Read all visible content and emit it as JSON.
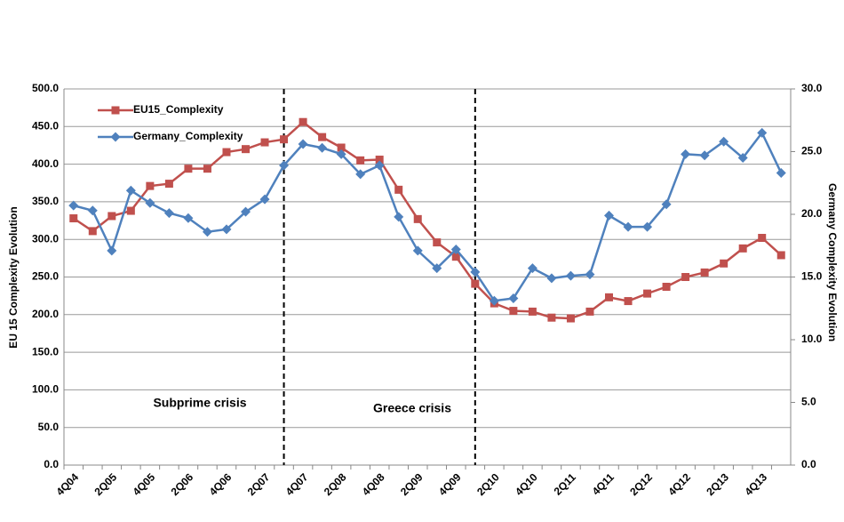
{
  "chart_data": {
    "type": "line",
    "y_label": "EU 15 Complexity Evolution",
    "y2_label": "Germany Complexity Evolution",
    "annotations": [
      "Subprime crisis",
      "Greece crisis"
    ],
    "categories": [
      "4Q04",
      null,
      "2Q05",
      null,
      "4Q05",
      null,
      "2Q06",
      null,
      "4Q06",
      null,
      "2Q07",
      null,
      "4Q07",
      null,
      "2Q08",
      null,
      "4Q08",
      null,
      "2Q09",
      null,
      "4Q09",
      null,
      "2Q10",
      null,
      "4Q10",
      null,
      "2Q11",
      null,
      "4Q11",
      null,
      "2Q12",
      null,
      "4Q12",
      null,
      "2Q13",
      null,
      "4Q13",
      null
    ],
    "series": [
      {
        "name": "EU15_Complexity",
        "color": "#c0504d",
        "marker": "square",
        "values": [
          328,
          311,
          331,
          338,
          371,
          374,
          394,
          394,
          416,
          420,
          429,
          433,
          456,
          436,
          422,
          405,
          406,
          366,
          327,
          296,
          277,
          241,
          215,
          205,
          204,
          196,
          195,
          204,
          223,
          218,
          228,
          237,
          250,
          256,
          268,
          288,
          302,
          279
        ]
      },
      {
        "name": "Germany_Complexity",
        "color": "#4f81bd",
        "marker": "diamond",
        "axis": "y2",
        "values": [
          20.7,
          20.3,
          17.1,
          21.9,
          20.9,
          20.1,
          19.7,
          18.6,
          18.8,
          20.2,
          21.2,
          23.9,
          25.6,
          25.3,
          24.8,
          23.2,
          23.9,
          19.8,
          17.1,
          15.7,
          17.2,
          15.4,
          13.1,
          13.3,
          15.7,
          14.9,
          15.1,
          15.2,
          19.9,
          19.0,
          19.0,
          20.8,
          24.8,
          24.7,
          25.8,
          24.5,
          26.5,
          23.3
        ]
      }
    ],
    "ylim": [
      0,
      500
    ],
    "yticks": [
      {
        "value": 0,
        "label": "0.0"
      },
      {
        "value": 50,
        "label": "50.0"
      },
      {
        "value": 100,
        "label": "100.0"
      },
      {
        "value": 150,
        "label": "150.0"
      },
      {
        "value": 200,
        "label": "200.0"
      },
      {
        "value": 250,
        "label": "250.0"
      },
      {
        "value": 300,
        "label": "300.0"
      },
      {
        "value": 350,
        "label": "350.0"
      },
      {
        "value": 400,
        "label": "400.0"
      },
      {
        "value": 450,
        "label": "450.0"
      },
      {
        "value": 500,
        "label": "500.0"
      }
    ],
    "y2lim": [
      0,
      30
    ],
    "y2ticks": [
      {
        "value": 0,
        "label": "0.0"
      },
      {
        "value": 5,
        "label": "5.0"
      },
      {
        "value": 10,
        "label": "10.0"
      },
      {
        "value": 15,
        "label": "15.0"
      },
      {
        "value": 20,
        "label": "20.0"
      },
      {
        "value": 25,
        "label": "25.0"
      },
      {
        "value": 30,
        "label": "30.0"
      }
    ],
    "grid": true
  }
}
